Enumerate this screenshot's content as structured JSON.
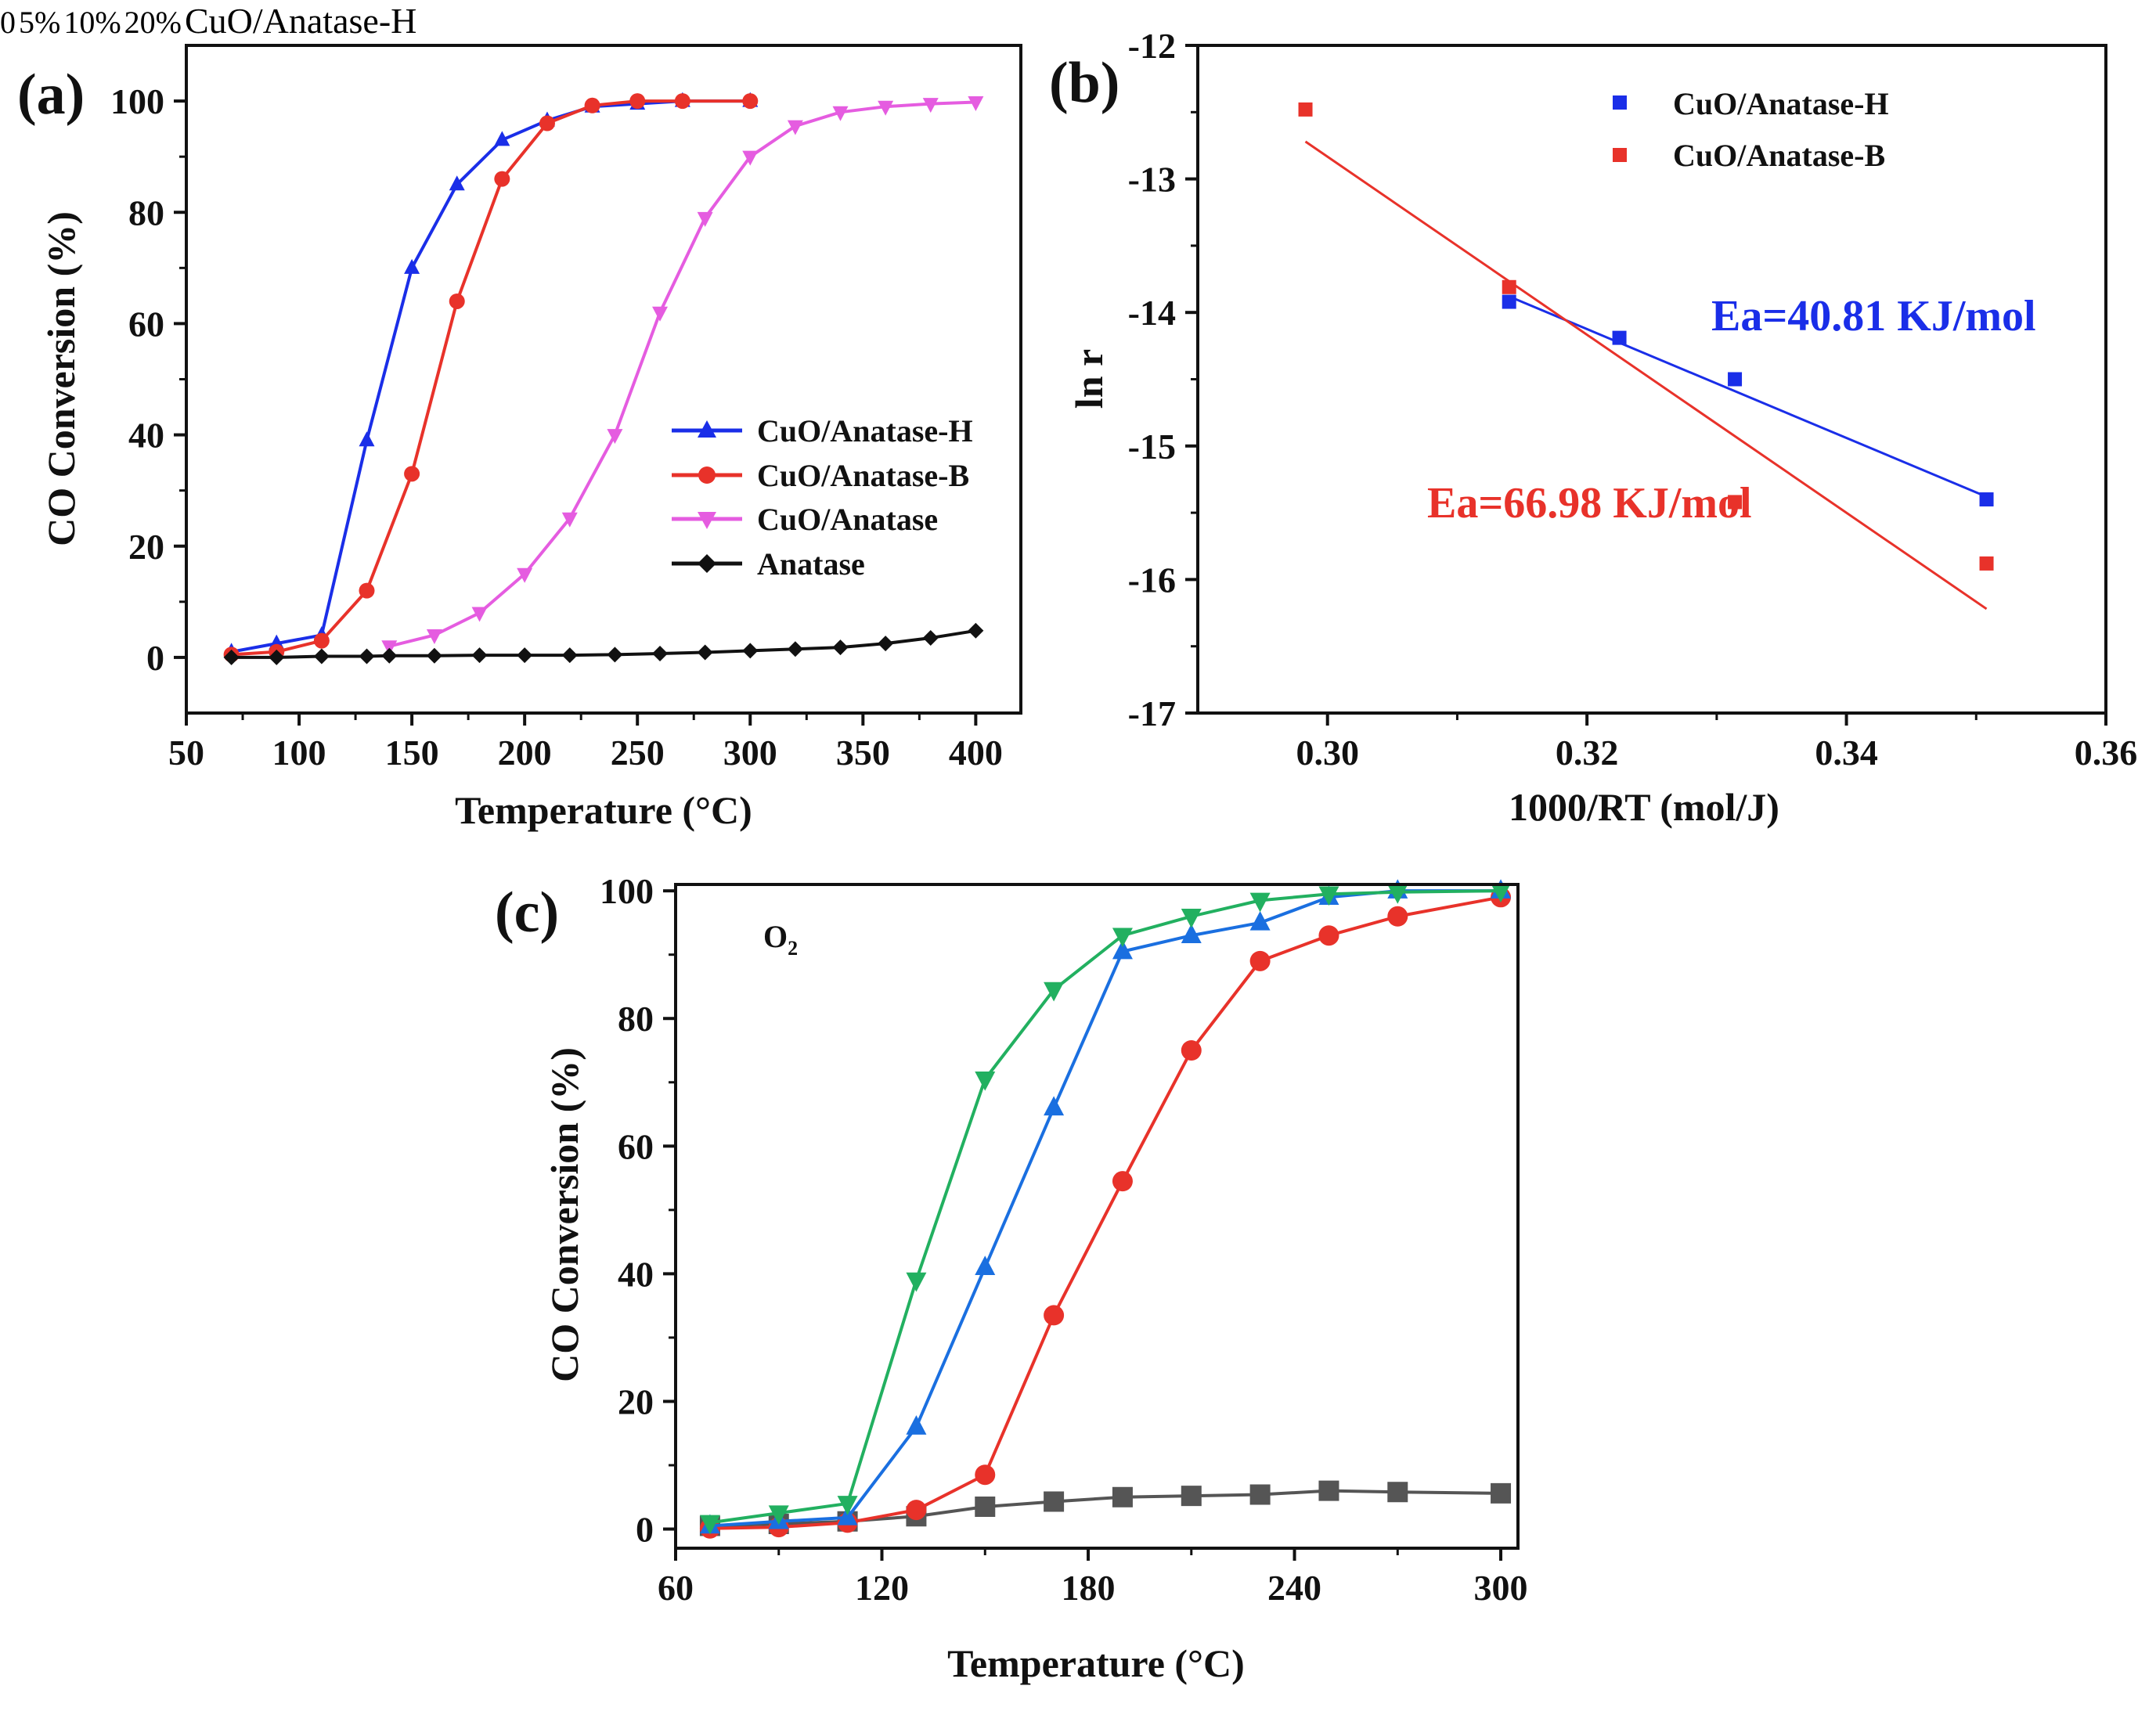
{
  "chart_data": [
    {
      "panel": "(a)",
      "type": "line",
      "xlabel": "Temperature (°C)",
      "ylabel": "CO Conversion (%)",
      "xlim": [
        50,
        420
      ],
      "ylim": [
        -10,
        110
      ],
      "xticks": [
        50,
        100,
        150,
        200,
        250,
        300,
        350,
        400
      ],
      "yticks": [
        0,
        20,
        40,
        60,
        80,
        100
      ],
      "legend_position": "center-right",
      "series": [
        {
          "name": "CuO/Anatase-H",
          "color": "#1a2ee8",
          "marker": "triangle-up",
          "x": [
            70,
            90,
            110,
            130,
            150,
            170,
            190,
            210,
            230,
            250,
            270,
            300
          ],
          "y": [
            1,
            2.5,
            4,
            39,
            70,
            85,
            93,
            96.5,
            99,
            99.5,
            100,
            100
          ]
        },
        {
          "name": "CuO/Anatase-B",
          "color": "#e8322a",
          "marker": "circle",
          "x": [
            70,
            90,
            110,
            130,
            150,
            170,
            190,
            210,
            230,
            250,
            270,
            300
          ],
          "y": [
            0.5,
            1,
            3,
            12,
            33,
            64,
            86,
            96,
            99.2,
            100,
            100,
            100
          ]
        },
        {
          "name": "CuO/Anatase",
          "color": "#e55ce0",
          "marker": "triangle-down",
          "x": [
            140,
            160,
            180,
            200,
            220,
            240,
            260,
            280,
            300,
            320,
            340,
            360,
            380,
            400
          ],
          "y": [
            2,
            4,
            8,
            15,
            25,
            40,
            62,
            79,
            90,
            95.5,
            98,
            99,
            99.5,
            99.8
          ]
        },
        {
          "name": "Anatase",
          "color": "#111111",
          "marker": "diamond",
          "x": [
            70,
            90,
            110,
            130,
            140,
            160,
            180,
            200,
            220,
            240,
            260,
            280,
            300,
            320,
            340,
            360,
            380,
            400
          ],
          "y": [
            0,
            0,
            0.2,
            0.2,
            0.3,
            0.3,
            0.4,
            0.4,
            0.4,
            0.5,
            0.7,
            0.9,
            1.2,
            1.5,
            1.8,
            2.5,
            3.5,
            4.8
          ]
        }
      ]
    },
    {
      "panel": "(b)",
      "type": "scatter",
      "xlabel": "1000/RT (mol/J)",
      "ylabel": "ln r",
      "xlim": [
        0.29,
        0.36
      ],
      "ylim": [
        -17,
        -12
      ],
      "xticks": [
        "0.30",
        "0.32",
        "0.34",
        "0.36"
      ],
      "yticks": [
        "-12",
        "-13",
        "-14",
        "-15",
        "-16",
        "-17"
      ],
      "legend_position": "top-right",
      "series": [
        {
          "name": "CuO/Anatase-H",
          "color": "#1a2ee8",
          "marker": "square",
          "x": [
            0.314,
            0.3225,
            0.3314,
            0.3508
          ],
          "y": [
            -13.92,
            -14.19,
            -14.5,
            -15.4
          ],
          "fit": {
            "x": [
              0.314,
              0.3508
            ],
            "y": [
              -13.88,
              -15.38
            ]
          }
        },
        {
          "name": "CuO/Anatase-B",
          "color": "#e8322a",
          "marker": "square",
          "x": [
            0.2983,
            0.314,
            0.3314,
            0.3508
          ],
          "y": [
            -12.48,
            -13.81,
            -15.42,
            -15.88
          ],
          "fit": {
            "x": [
              0.2983,
              0.3508
            ],
            "y": [
              -12.72,
              -16.22
            ]
          }
        }
      ],
      "annotations": [
        {
          "text": "Ea=40.81 KJ/mol",
          "color": "#1a2ee8"
        },
        {
          "text": "Ea=66.98 KJ/mol",
          "color": "#e8322a"
        }
      ]
    },
    {
      "panel": "(c)",
      "type": "line",
      "xlabel": "Temperature (°C)",
      "ylabel": "CO Conversion (%)",
      "xlim": [
        60,
        305
      ],
      "ylim": [
        -3,
        101
      ],
      "xticks": [
        60,
        120,
        180,
        240,
        300
      ],
      "yticks": [
        0,
        20,
        40,
        60,
        80,
        100
      ],
      "legend_title": "O2",
      "legend_position": "top-left",
      "box_label": "CuO/Anatase-H",
      "series": [
        {
          "name": "0",
          "color": "#555555",
          "marker": "square",
          "x": [
            70,
            90,
            110,
            130,
            150,
            170,
            190,
            210,
            230,
            250,
            270,
            300
          ],
          "y": [
            0.5,
            0.8,
            1.2,
            2,
            3.5,
            4.3,
            5,
            5.2,
            5.4,
            6,
            5.8,
            5.6
          ]
        },
        {
          "name": "5%",
          "color": "#e8322a",
          "marker": "circle",
          "x": [
            70,
            90,
            110,
            130,
            150,
            170,
            190,
            210,
            230,
            250,
            270,
            300
          ],
          "y": [
            0.1,
            0.3,
            1,
            3,
            8.5,
            33.5,
            54.5,
            75,
            89,
            93,
            96,
            99
          ]
        },
        {
          "name": "10%",
          "color": "#1a6fe0",
          "marker": "triangle-up",
          "x": [
            70,
            90,
            110,
            130,
            150,
            170,
            190,
            210,
            230,
            250,
            270,
            300
          ],
          "y": [
            0.5,
            1.2,
            1.8,
            16,
            41,
            66,
            90.5,
            93,
            95,
            99,
            100,
            100
          ]
        },
        {
          "name": "20%",
          "color": "#22b060",
          "marker": "triangle-down",
          "x": [
            70,
            90,
            110,
            130,
            150,
            170,
            190,
            210,
            230,
            250,
            270,
            300
          ],
          "y": [
            1,
            2.5,
            4,
            39,
            70.5,
            84.5,
            93,
            96,
            98.5,
            99.5,
            99.8,
            100
          ]
        }
      ]
    }
  ]
}
